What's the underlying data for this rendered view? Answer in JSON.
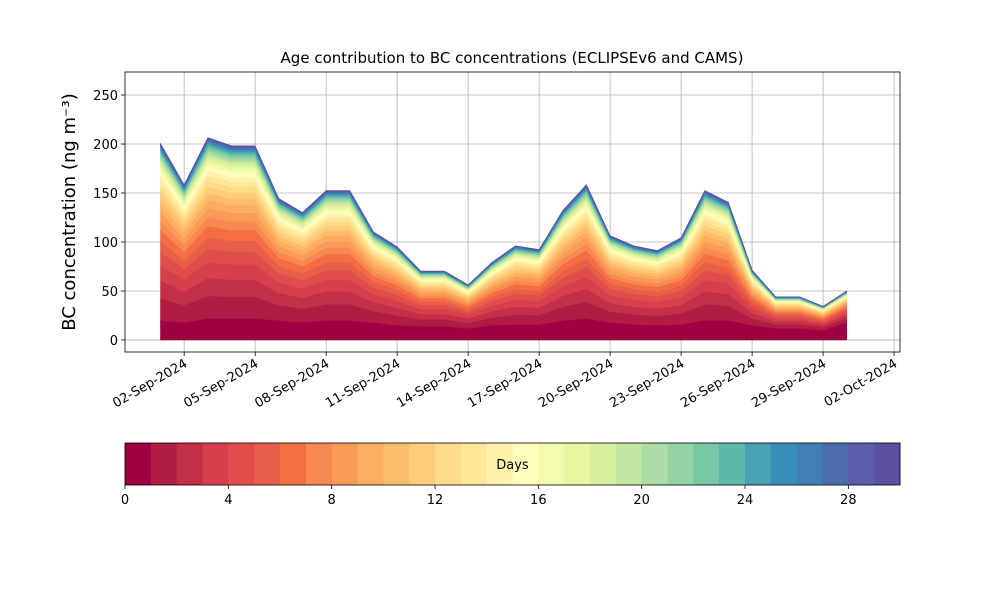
{
  "chart_data": {
    "type": "stacked_area",
    "title": "Age contribution to BC concentrations (ECLIPSEv6 and CAMS)",
    "y_label": "BC concentration (ng m⁻³)",
    "x": [
      "2024-09-01",
      "2024-09-02",
      "2024-09-03",
      "2024-09-04",
      "2024-09-05",
      "2024-09-06",
      "2024-09-07",
      "2024-09-08",
      "2024-09-09",
      "2024-09-10",
      "2024-09-11",
      "2024-09-12",
      "2024-09-13",
      "2024-09-14",
      "2024-09-15",
      "2024-09-16",
      "2024-09-17",
      "2024-09-18",
      "2024-09-19",
      "2024-09-20",
      "2024-09-21",
      "2024-09-22",
      "2024-09-23",
      "2024-09-24",
      "2024-09-25",
      "2024-09-26",
      "2024-09-27",
      "2024-09-28",
      "2024-09-29",
      "2024-09-30"
    ],
    "xlim": [
      "2024-08-30T12:00",
      "2024-10-02T06:00"
    ],
    "xticks": [
      {
        "value": "2024-09-02",
        "label": "02-Sep-2024"
      },
      {
        "value": "2024-09-05",
        "label": "05-Sep-2024"
      },
      {
        "value": "2024-09-08",
        "label": "08-Sep-2024"
      },
      {
        "value": "2024-09-11",
        "label": "11-Sep-2024"
      },
      {
        "value": "2024-09-14",
        "label": "14-Sep-2024"
      },
      {
        "value": "2024-09-17",
        "label": "17-Sep-2024"
      },
      {
        "value": "2024-09-20",
        "label": "20-Sep-2024"
      },
      {
        "value": "2024-09-23",
        "label": "23-Sep-2024"
      },
      {
        "value": "2024-09-26",
        "label": "26-Sep-2024"
      },
      {
        "value": "2024-09-29",
        "label": "29-Sep-2024"
      },
      {
        "value": "2024-10-02",
        "label": "02-Oct-2024"
      }
    ],
    "ylim": [
      -12.3,
      273.5
    ],
    "yticks": [
      0,
      50,
      100,
      150,
      200,
      250
    ],
    "grid": true,
    "colorbar": {
      "label": "Days",
      "lim": [
        0,
        30
      ],
      "ticks": [
        0,
        4,
        8,
        12,
        16,
        20,
        24,
        28
      ]
    },
    "series": [
      {
        "color": "#9e0142",
        "values": [
          20,
          18,
          22,
          22,
          22,
          20,
          18,
          20,
          20,
          18,
          15,
          14,
          14,
          12,
          15,
          16,
          16,
          20,
          22,
          18,
          16,
          15,
          16,
          20,
          20,
          15,
          12,
          12,
          10,
          18
        ]
      },
      {
        "color": "#b11b44",
        "values": [
          22.5,
          17.5,
          23,
          22,
          22,
          15.5,
          14,
          16.5,
          16.5,
          11.5,
          10,
          7,
          7,
          5.5,
          8,
          10,
          9.5,
          14,
          17,
          11,
          10,
          9.5,
          11,
          16.5,
          15,
          7,
          4,
          4,
          3,
          4
        ]
      },
      {
        "color": "#c42f48",
        "values": [
          18,
          14,
          18.4,
          17.6,
          17.6,
          12.4,
          11.2,
          13.2,
          13.2,
          9.2,
          8,
          5.6,
          5.6,
          4.4,
          6.4,
          8,
          7.6,
          11.2,
          13.6,
          8.8,
          8,
          7.6,
          8.8,
          13.2,
          12,
          5.6,
          3.2,
          3.2,
          2.4,
          3.2
        ]
      },
      {
        "color": "#d5404e",
        "values": [
          15.8,
          12.3,
          16.1,
          15.4,
          15.4,
          10.9,
          9.8,
          11.6,
          11.6,
          8.1,
          7,
          4.9,
          4.9,
          3.9,
          5.6,
          7,
          6.7,
          9.8,
          11.9,
          7.7,
          7,
          6.7,
          7.7,
          11.6,
          10.5,
          4.9,
          2.8,
          2.8,
          2.1,
          2.8
        ]
      },
      {
        "color": "#df4e4b",
        "values": [
          13.5,
          10.5,
          13.8,
          13.2,
          13.2,
          9.3,
          8.4,
          9.9,
          9.9,
          6.9,
          6,
          4.2,
          4.2,
          3.3,
          4.8,
          6,
          5.7,
          8.4,
          10.2,
          6.6,
          6,
          5.7,
          6.6,
          9.9,
          9,
          4.2,
          2.4,
          2.4,
          1.8,
          2.4
        ]
      },
      {
        "color": "#e85e48",
        "values": [
          11.3,
          8.8,
          11.5,
          11,
          11,
          7.8,
          7,
          8.3,
          8.3,
          5.8,
          5,
          3.5,
          3.5,
          2.8,
          4,
          5,
          4.8,
          7,
          8.5,
          5.5,
          5,
          4.8,
          5.5,
          8.3,
          7.5,
          3.5,
          2,
          2,
          1.5,
          2
        ]
      },
      {
        "color": "#f46d43",
        "values": [
          11.3,
          8.8,
          11.5,
          11,
          11,
          7.8,
          7,
          8.3,
          8.3,
          5.8,
          5,
          3.5,
          3.5,
          2.8,
          4,
          5,
          4.8,
          7,
          8.5,
          5.5,
          5,
          4.8,
          5.5,
          8.3,
          7.5,
          3.5,
          2,
          2,
          1.5,
          2
        ]
      },
      {
        "color": "#f88a51",
        "values": [
          9,
          7,
          9.2,
          8.8,
          8.8,
          6.2,
          5.6,
          6.6,
          6.6,
          4.6,
          4,
          2.8,
          2.8,
          2.2,
          3.2,
          4,
          3.8,
          5.6,
          6.8,
          4.4,
          4,
          3.8,
          4.4,
          6.6,
          6,
          2.8,
          1.6,
          1.6,
          1.2,
          1.6
        ]
      },
      {
        "color": "#fa9b58",
        "values": [
          9,
          7,
          9.2,
          8.8,
          8.8,
          6.2,
          5.6,
          6.6,
          6.6,
          4.6,
          4,
          2.8,
          2.8,
          2.2,
          3.2,
          4,
          3.8,
          5.6,
          6.8,
          4.4,
          4,
          3.8,
          4.4,
          6.6,
          6,
          2.8,
          1.6,
          1.6,
          1.2,
          1.6
        ]
      },
      {
        "color": "#fcad60",
        "values": [
          7.9,
          6.1,
          8.1,
          7.7,
          7.7,
          5.4,
          4.9,
          5.8,
          5.8,
          4,
          3.5,
          2.5,
          2.5,
          1.9,
          2.8,
          3.5,
          3.3,
          4.9,
          6,
          3.9,
          3.5,
          3.3,
          3.9,
          5.8,
          5.3,
          2.5,
          1.4,
          1.4,
          1.1,
          1.4
        ]
      },
      {
        "color": "#fdbd6c",
        "values": [
          6.8,
          5.3,
          6.9,
          6.6,
          6.6,
          4.7,
          4.2,
          5,
          5,
          3.5,
          3,
          2.1,
          2.1,
          1.7,
          2.4,
          3,
          2.9,
          4.2,
          5.1,
          3.3,
          3,
          2.9,
          3.3,
          5,
          4.5,
          2.1,
          1.2,
          1.2,
          0.9,
          1.2
        ]
      },
      {
        "color": "#fecc7b",
        "values": [
          6.8,
          5.3,
          6.9,
          6.6,
          6.6,
          4.7,
          4.2,
          5,
          5,
          3.5,
          3,
          2.1,
          2.1,
          1.7,
          2.4,
          3,
          2.9,
          4.2,
          5.1,
          3.3,
          3,
          2.9,
          3.3,
          5,
          4.5,
          2.1,
          1.2,
          1.2,
          0.9,
          1.2
        ]
      },
      {
        "color": "#fedb88",
        "values": [
          5.6,
          4.4,
          5.8,
          5.5,
          5.5,
          3.9,
          3.5,
          4.1,
          4.1,
          2.9,
          2.5,
          1.8,
          1.8,
          1.4,
          2,
          2.5,
          2.4,
          3.5,
          4.3,
          2.8,
          2.5,
          2.4,
          2.8,
          4.1,
          3.8,
          1.8,
          1,
          1,
          0.8,
          1
        ]
      },
      {
        "color": "#fee797",
        "values": [
          5.6,
          4.4,
          5.8,
          5.5,
          5.5,
          3.9,
          3.5,
          4.1,
          4.1,
          2.9,
          2.5,
          1.8,
          1.8,
          1.4,
          2,
          2.5,
          2.4,
          3.5,
          4.3,
          2.8,
          2.5,
          2.4,
          2.8,
          4.1,
          3.8,
          1.8,
          1,
          1,
          0.8,
          1
        ]
      },
      {
        "color": "#fff2aa",
        "values": [
          4.5,
          3.5,
          4.6,
          4.4,
          4.4,
          3.1,
          2.8,
          3.3,
          3.3,
          2.3,
          2,
          1.4,
          1.4,
          1.1,
          1.6,
          2,
          1.9,
          2.8,
          3.4,
          2.2,
          2,
          1.9,
          2.2,
          3.3,
          3,
          1.4,
          0.8,
          0.8,
          0.6,
          0.8
        ]
      },
      {
        "color": "#fffebe",
        "values": [
          4.5,
          3.5,
          4.6,
          4.4,
          4.4,
          3.1,
          2.8,
          3.3,
          3.3,
          2.3,
          2,
          1.4,
          1.4,
          1.1,
          1.6,
          2,
          1.9,
          2.8,
          3.4,
          2.2,
          2,
          1.9,
          2.2,
          3.3,
          3,
          1.4,
          0.8,
          0.8,
          0.6,
          0.8
        ]
      },
      {
        "color": "#f4faae",
        "values": [
          3.4,
          2.6,
          3.5,
          3.3,
          3.3,
          2.3,
          2.1,
          2.5,
          2.5,
          1.7,
          1.5,
          1.1,
          1.1,
          0.8,
          1.2,
          1.5,
          1.4,
          2.1,
          2.6,
          1.7,
          1.5,
          1.4,
          1.7,
          2.5,
          2.3,
          1.1,
          0.6,
          0.6,
          0.5,
          0.6
        ]
      },
      {
        "color": "#e9f69f",
        "values": [
          3.4,
          2.6,
          3.5,
          3.3,
          3.3,
          2.3,
          2.1,
          2.5,
          2.5,
          1.7,
          1.5,
          1.1,
          1.1,
          0.8,
          1.2,
          1.5,
          1.4,
          2.1,
          2.6,
          1.7,
          1.5,
          1.4,
          1.7,
          2.5,
          2.3,
          1.1,
          0.6,
          0.6,
          0.5,
          0.6
        ]
      },
      {
        "color": "#d8ef9b",
        "values": [
          3.4,
          2.6,
          3.5,
          3.3,
          3.3,
          2.3,
          2.1,
          2.5,
          2.5,
          1.7,
          1.5,
          1.1,
          1.1,
          0.8,
          1.2,
          1.5,
          1.4,
          2.1,
          2.6,
          1.7,
          1.5,
          1.4,
          1.7,
          2.5,
          2.3,
          1.1,
          0.6,
          0.6,
          0.5,
          0.6
        ]
      },
      {
        "color": "#c2e69f",
        "values": [
          2.25,
          1.75,
          2.3,
          2.2,
          2.2,
          1.55,
          1.4,
          1.65,
          1.65,
          1.15,
          1,
          0.7,
          0.7,
          0.55,
          0.8,
          1,
          0.95,
          1.4,
          1.7,
          1.1,
          1,
          0.95,
          1.1,
          1.65,
          1.5,
          0.7,
          0.4,
          0.4,
          0.3,
          0.4
        ]
      },
      {
        "color": "#abdda4",
        "values": [
          2.25,
          1.75,
          2.3,
          2.2,
          2.2,
          1.55,
          1.4,
          1.65,
          1.65,
          1.15,
          1,
          0.7,
          0.7,
          0.55,
          0.8,
          1,
          0.95,
          1.4,
          1.7,
          1.1,
          1,
          0.95,
          1.1,
          1.65,
          1.5,
          0.7,
          0.4,
          0.4,
          0.3,
          0.4
        ]
      },
      {
        "color": "#93d3a4",
        "values": [
          2.25,
          1.75,
          2.3,
          2.2,
          2.2,
          1.55,
          1.4,
          1.65,
          1.65,
          1.15,
          1,
          0.7,
          0.7,
          0.55,
          0.8,
          1,
          0.95,
          1.4,
          1.7,
          1.1,
          1,
          0.95,
          1.1,
          1.65,
          1.5,
          0.7,
          0.4,
          0.4,
          0.3,
          0.4
        ]
      },
      {
        "color": "#77c8a4",
        "values": [
          2.25,
          1.75,
          2.3,
          2.2,
          2.2,
          1.55,
          1.4,
          1.65,
          1.65,
          1.15,
          1,
          0.7,
          0.7,
          0.55,
          0.8,
          1,
          0.95,
          1.4,
          1.7,
          1.1,
          1,
          0.95,
          1.1,
          1.65,
          1.5,
          0.7,
          0.4,
          0.4,
          0.3,
          0.4
        ]
      },
      {
        "color": "#5db8a9",
        "values": [
          1.8,
          1.4,
          1.84,
          1.76,
          1.76,
          1.24,
          1.12,
          1.32,
          1.32,
          0.92,
          0.8,
          0.56,
          0.56,
          0.44,
          0.64,
          0.8,
          0.76,
          1.12,
          1.36,
          0.88,
          0.8,
          0.76,
          0.88,
          1.32,
          1.2,
          0.56,
          0.32,
          0.32,
          0.24,
          0.32
        ]
      },
      {
        "color": "#46a2b1",
        "values": [
          1.8,
          1.4,
          1.84,
          1.76,
          1.76,
          1.24,
          1.12,
          1.32,
          1.32,
          0.92,
          0.8,
          0.56,
          0.56,
          0.44,
          0.64,
          0.8,
          0.76,
          1.12,
          1.36,
          0.88,
          0.8,
          0.76,
          0.88,
          1.32,
          1.2,
          0.56,
          0.32,
          0.32,
          0.24,
          0.32
        ]
      },
      {
        "color": "#378fba",
        "values": [
          1.35,
          1.05,
          1.38,
          1.32,
          1.32,
          0.93,
          0.84,
          0.99,
          0.99,
          0.69,
          0.6,
          0.42,
          0.42,
          0.33,
          0.48,
          0.6,
          0.57,
          0.84,
          1.02,
          0.66,
          0.6,
          0.57,
          0.66,
          0.99,
          0.9,
          0.42,
          0.24,
          0.24,
          0.18,
          0.24
        ]
      },
      {
        "color": "#3f7eb7",
        "values": [
          1.35,
          1.05,
          1.38,
          1.32,
          1.32,
          0.93,
          0.84,
          0.99,
          0.99,
          0.69,
          0.6,
          0.42,
          0.42,
          0.33,
          0.48,
          0.6,
          0.57,
          0.84,
          1.02,
          0.66,
          0.6,
          0.57,
          0.66,
          0.99,
          0.9,
          0.42,
          0.24,
          0.24,
          0.18,
          0.24
        ]
      },
      {
        "color": "#4b6daf",
        "values": [
          1.13,
          0.88,
          1.15,
          1.1,
          1.1,
          0.78,
          0.7,
          0.83,
          0.83,
          0.58,
          0.5,
          0.35,
          0.35,
          0.28,
          0.4,
          0.5,
          0.48,
          0.7,
          0.85,
          0.55,
          0.5,
          0.48,
          0.55,
          0.83,
          0.75,
          0.35,
          0.2,
          0.2,
          0.15,
          0.2
        ]
      },
      {
        "color": "#5a5dab",
        "values": [
          0.9,
          0.7,
          0.92,
          0.88,
          0.88,
          0.62,
          0.56,
          0.66,
          0.66,
          0.46,
          0.4,
          0.28,
          0.28,
          0.22,
          0.32,
          0.4,
          0.38,
          0.56,
          0.68,
          0.44,
          0.4,
          0.38,
          0.44,
          0.66,
          0.6,
          0.28,
          0.16,
          0.16,
          0.12,
          0.16
        ]
      },
      {
        "color": "#5e4fa2",
        "values": [
          0.9,
          0.7,
          0.92,
          0.88,
          0.88,
          0.62,
          0.56,
          0.66,
          0.66,
          0.46,
          0.4,
          0.28,
          0.28,
          0.22,
          0.32,
          0.4,
          0.38,
          0.56,
          0.68,
          0.44,
          0.4,
          0.38,
          0.44,
          0.66,
          0.6,
          0.28,
          0.16,
          0.16,
          0.12,
          0.16
        ]
      }
    ]
  }
}
